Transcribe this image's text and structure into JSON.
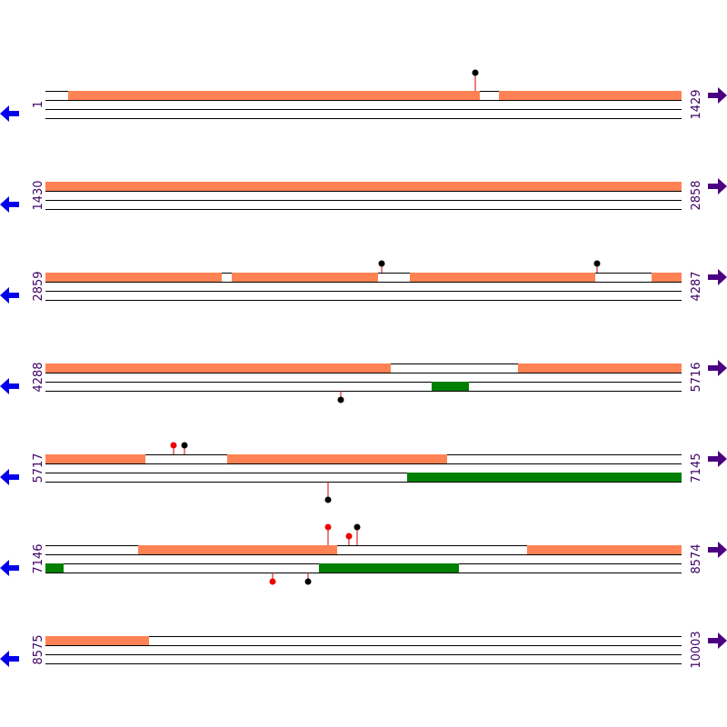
{
  "rows": [
    {
      "start": "1",
      "end": "1429"
    },
    {
      "start": "1430",
      "end": "2858"
    },
    {
      "start": "2859",
      "end": "4287"
    },
    {
      "start": "4288",
      "end": "5716"
    },
    {
      "start": "5717",
      "end": "7145"
    },
    {
      "start": "7146",
      "end": "8574"
    },
    {
      "start": "8575",
      "end": "10003"
    }
  ]
}
